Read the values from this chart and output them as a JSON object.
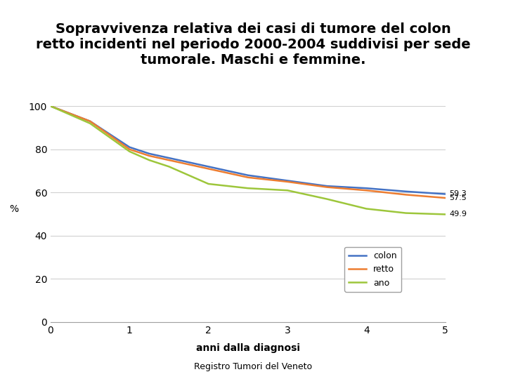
{
  "title": "Sopravvivenza relativa dei casi di tumore del colon\nretto incidenti nel periodo 2000-2004 suddivisi per sede\ntumorale. Maschi e femmine.",
  "xlabel": "anni dalla diagnosi",
  "ylabel": "%",
  "footer": "Registro Tumori del Veneto",
  "xlim": [
    0,
    5
  ],
  "ylim": [
    0,
    100
  ],
  "xticks": [
    0,
    1,
    2,
    3,
    4,
    5
  ],
  "yticks": [
    0,
    20,
    40,
    60,
    80,
    100
  ],
  "series": {
    "colon": {
      "x": [
        0,
        0.5,
        1,
        1.25,
        1.5,
        2,
        2.5,
        3,
        3.5,
        4,
        4.5,
        5
      ],
      "y": [
        100,
        93,
        81,
        78,
        76,
        72,
        68,
        65.5,
        63,
        62,
        60.5,
        59.3
      ],
      "color": "#4472C4",
      "label": "colon",
      "end_value": "59.3"
    },
    "retto": {
      "x": [
        0,
        0.5,
        1,
        1.25,
        1.5,
        2,
        2.5,
        3,
        3.5,
        4,
        4.5,
        5
      ],
      "y": [
        100,
        93,
        80,
        77,
        75,
        71,
        67,
        65,
        62.5,
        61,
        59,
        57.5
      ],
      "color": "#ED7D31",
      "label": "retto",
      "end_value": "57.5"
    },
    "ano": {
      "x": [
        0,
        0.5,
        1,
        1.25,
        1.5,
        2,
        2.5,
        3,
        3.5,
        4,
        4.5,
        5
      ],
      "y": [
        100,
        92,
        79,
        75,
        72,
        64,
        62,
        61,
        57,
        52.5,
        50.5,
        49.9
      ],
      "color": "#9DC63B",
      "label": "ano",
      "end_value": "49.9"
    }
  },
  "title_fontsize": 14,
  "axis_label_fontsize": 10,
  "tick_fontsize": 10,
  "legend_fontsize": 9,
  "footer_fontsize": 9,
  "annotation_fontsize": 8,
  "background_color": "#FFFFFF",
  "grid_color": "#D0D0D0"
}
